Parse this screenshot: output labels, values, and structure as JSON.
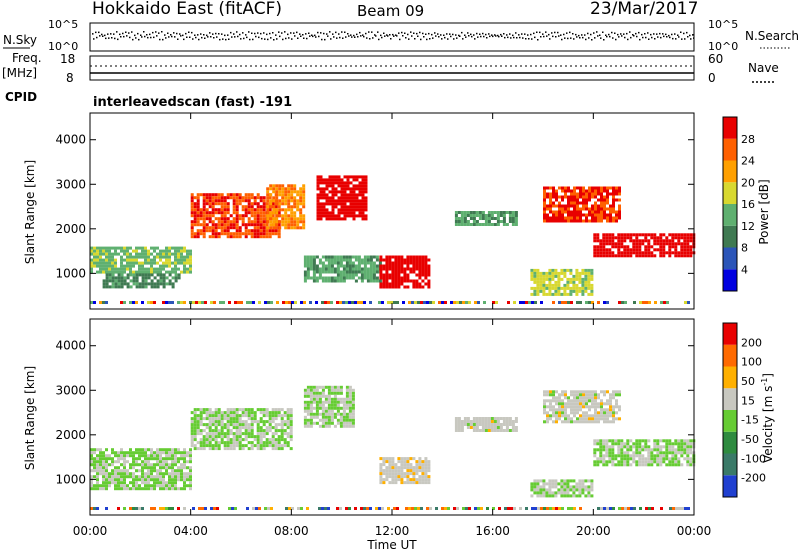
{
  "header": {
    "radar": "Hokkaido East (fitACF)",
    "beam": "Beam 09",
    "date": "23/Mar/2017"
  },
  "noise_panel": {
    "left_label": "N.Sky",
    "left_ticks": [
      "10^5",
      "10^0"
    ],
    "right_ticks": [
      "10^5",
      "10^0"
    ],
    "right_label": "N.Search"
  },
  "freq_panel": {
    "left_label_1": "Freq.",
    "left_label_2": "[MHz]",
    "left_ticks": [
      "18",
      "8"
    ],
    "right_ticks": [
      "60",
      "0"
    ],
    "right_label": "Nave"
  },
  "cpid": {
    "label": "CPID",
    "value": "interleavedscan (fast) -191"
  },
  "power_panel": {
    "ylabel": "Slant Range [km]",
    "y_ticks": [
      "4000",
      "3000",
      "2000",
      "1000"
    ],
    "colorbar_label": "Power [dB]",
    "colorbar_ticks": [
      "28",
      "24",
      "20",
      "16",
      "12",
      "8",
      "4"
    ],
    "colors": [
      "#0000e0",
      "#2b55b8",
      "#3f7a52",
      "#5fb070",
      "#d8d830",
      "#ffa000",
      "#ff6000",
      "#e80000"
    ]
  },
  "velocity_panel": {
    "ylabel": "Slant Range [km]",
    "y_ticks": [
      "4000",
      "3000",
      "2000",
      "1000"
    ],
    "colorbar_label": "Velocity [m s",
    "colorbar_label_sup": "-1",
    "colorbar_label_end": "]",
    "colorbar_ticks": [
      "200",
      "100",
      "50",
      "15",
      "-15",
      "-50",
      "-100",
      "-200"
    ],
    "colors": [
      "#2040d0",
      "#3a7a68",
      "#2e8b3f",
      "#66cc33",
      "#c8c8c0",
      "#ffb000",
      "#ff6a00",
      "#e80000"
    ]
  },
  "x_axis": {
    "ticks": [
      "00:00",
      "04:00",
      "08:00",
      "12:00",
      "16:00",
      "20:00",
      "00:00"
    ],
    "label": "Time UT"
  },
  "chart_data": [
    {
      "type": "heatmap",
      "name": "power",
      "xlabel": "Time UT",
      "ylabel": "Slant Range [km]",
      "xlim": [
        0,
        24
      ],
      "ylim": [
        200,
        4600
      ],
      "colorbar": {
        "label": "Power [dB]",
        "range": [
          0,
          30
        ]
      },
      "regions": [
        {
          "t0": 0.0,
          "t1": 4.0,
          "r0": 1000,
          "r1": 1600,
          "value": 14
        },
        {
          "t0": 0.5,
          "t1": 3.5,
          "r0": 700,
          "r1": 1000,
          "value": 10
        },
        {
          "t0": 4.0,
          "t1": 7.5,
          "r0": 1800,
          "r1": 2800,
          "value": 26
        },
        {
          "t0": 7.0,
          "t1": 8.5,
          "r0": 2000,
          "r1": 3000,
          "value": 22
        },
        {
          "t0": 9.0,
          "t1": 11.0,
          "r0": 2200,
          "r1": 3200,
          "value": 29
        },
        {
          "t0": 8.5,
          "t1": 11.5,
          "r0": 800,
          "r1": 1400,
          "value": 12
        },
        {
          "t0": 11.5,
          "t1": 13.5,
          "r0": 700,
          "r1": 1400,
          "value": 29
        },
        {
          "t0": 14.5,
          "t1": 17.0,
          "r0": 2100,
          "r1": 2400,
          "value": 12
        },
        {
          "t0": 18.0,
          "t1": 21.0,
          "r0": 2200,
          "r1": 2950,
          "value": 27
        },
        {
          "t0": 20.0,
          "t1": 24.0,
          "r0": 1400,
          "r1": 1900,
          "value": 29
        },
        {
          "t0": 17.5,
          "t1": 20.0,
          "r0": 500,
          "r1": 1100,
          "value": 16
        }
      ]
    },
    {
      "type": "heatmap",
      "name": "velocity",
      "xlabel": "Time UT",
      "ylabel": "Slant Range [km]",
      "xlim": [
        0,
        24
      ],
      "ylim": [
        200,
        4600
      ],
      "colorbar": {
        "label": "Velocity [m s-1]",
        "range": [
          -250,
          250
        ]
      },
      "regions": [
        {
          "t0": 0.0,
          "t1": 4.0,
          "r0": 800,
          "r1": 1700,
          "value": -5
        },
        {
          "t0": 4.0,
          "t1": 8.0,
          "r0": 1700,
          "r1": 2600,
          "value": 0
        },
        {
          "t0": 8.5,
          "t1": 10.5,
          "r0": 2200,
          "r1": 3100,
          "value": 5
        },
        {
          "t0": 11.5,
          "t1": 13.5,
          "r0": 900,
          "r1": 1500,
          "value": 40
        },
        {
          "t0": 14.5,
          "t1": 17.0,
          "r0": 2100,
          "r1": 2400,
          "value": 30
        },
        {
          "t0": 18.0,
          "t1": 21.0,
          "r0": 2300,
          "r1": 3000,
          "value": 30
        },
        {
          "t0": 20.0,
          "t1": 24.0,
          "r0": 1300,
          "r1": 1900,
          "value": 0
        },
        {
          "t0": 17.5,
          "t1": 20.0,
          "r0": 600,
          "r1": 1000,
          "value": 0
        }
      ]
    }
  ]
}
